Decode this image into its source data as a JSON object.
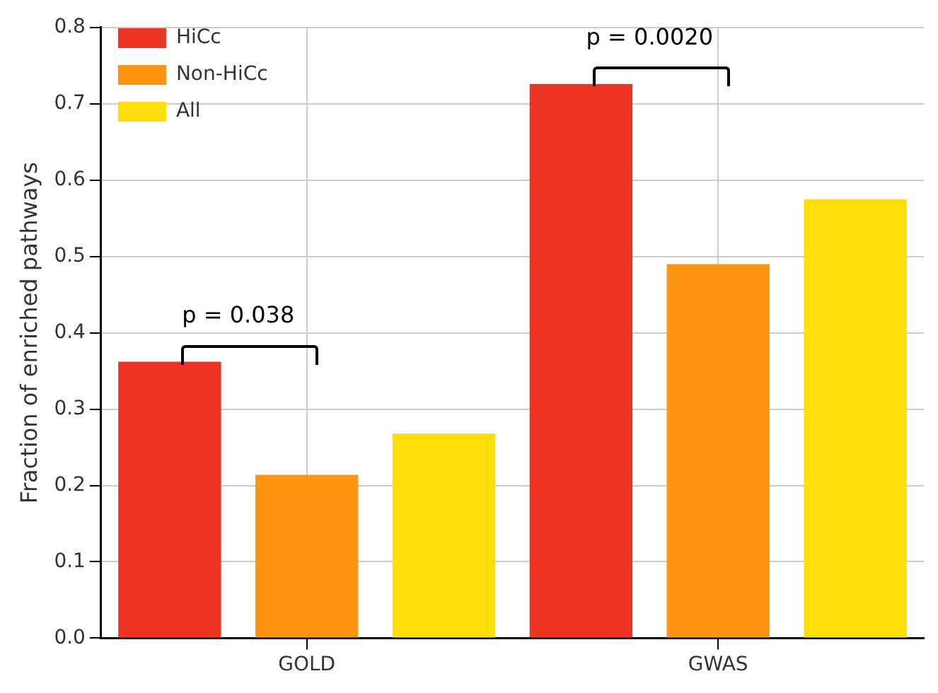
{
  "chart_data": {
    "type": "bar",
    "ylabel": "Fraction of enriched pathways",
    "categories": [
      "GOLD",
      "GWAS"
    ],
    "series": [
      {
        "name": "HiCc",
        "color": "#ee3524",
        "values": [
          0.362,
          0.726
        ]
      },
      {
        "name": "Non-HiCc",
        "color": "#ff9410",
        "values": [
          0.214,
          0.49
        ]
      },
      {
        "name": "All",
        "color": "#ffde0a",
        "values": [
          0.268,
          0.575
        ]
      }
    ],
    "ylim": [
      0,
      0.8
    ],
    "yticks": [
      {
        "value": 0,
        "label": "0.0"
      },
      0.1,
      0.2,
      0.3,
      0.4,
      0.5,
      0.6,
      0.7,
      0.8
    ],
    "grid": true,
    "legend": "top left",
    "annotations": [
      "p = 0.038",
      "p = 0.0020"
    ]
  }
}
